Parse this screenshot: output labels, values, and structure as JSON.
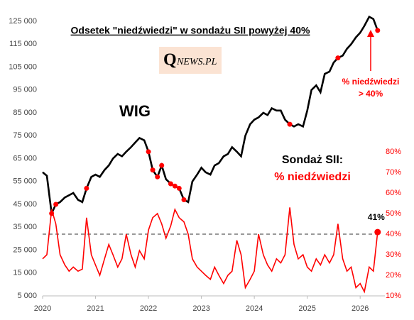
{
  "chart_data": {
    "type": "line",
    "title": "Odsetek \"niedźwiedzi\" w sondażu SII powyżej 40%",
    "logo_first": "Q",
    "logo_rest": "NEWS.PL",
    "x": [
      2020.0,
      2020.08,
      2020.17,
      2020.25,
      2020.33,
      2020.42,
      2020.5,
      2020.58,
      2020.67,
      2020.75,
      2020.83,
      2020.92,
      2021.0,
      2021.08,
      2021.17,
      2021.25,
      2021.33,
      2021.42,
      2021.5,
      2021.58,
      2021.67,
      2021.75,
      2021.83,
      2021.92,
      2022.0,
      2022.08,
      2022.17,
      2022.25,
      2022.33,
      2022.42,
      2022.5,
      2022.58,
      2022.67,
      2022.75,
      2022.83,
      2022.92,
      2023.0,
      2023.08,
      2023.17,
      2023.25,
      2023.33,
      2023.42,
      2023.5,
      2023.58,
      2023.67,
      2023.75,
      2023.83,
      2023.92,
      2024.0,
      2024.08,
      2024.17,
      2024.25,
      2024.33,
      2024.42,
      2024.5,
      2024.58,
      2024.67,
      2024.75,
      2024.83,
      2024.92,
      2025.0,
      2025.08,
      2025.17,
      2025.25,
      2025.33,
      2025.42,
      2025.5,
      2025.58,
      2025.67,
      2025.75,
      2025.83,
      2025.92,
      2026.0,
      2026.08,
      2026.17,
      2026.25,
      2026.33
    ],
    "series": [
      {
        "name": "WIG",
        "color": "#000000",
        "values": [
          59000,
          57500,
          41000,
          45000,
          46000,
          48000,
          49000,
          50000,
          47000,
          46000,
          52000,
          57000,
          58000,
          57000,
          60000,
          62000,
          65000,
          67000,
          66000,
          68000,
          70000,
          72000,
          74000,
          73000,
          68000,
          60000,
          57000,
          62000,
          56000,
          54000,
          53000,
          52000,
          47000,
          46000,
          55000,
          58000,
          61000,
          59000,
          58000,
          62000,
          63000,
          66000,
          67000,
          70000,
          68000,
          66000,
          75000,
          80000,
          82000,
          83000,
          85000,
          84000,
          87000,
          86000,
          86000,
          82000,
          80000,
          79000,
          80000,
          79000,
          86000,
          95000,
          97000,
          94000,
          102000,
          103000,
          107000,
          109000,
          110000,
          113000,
          115000,
          118000,
          120000,
          123000,
          127000,
          126000,
          121000
        ]
      },
      {
        "name": "% niedźwiedzi",
        "color": "#ff0000",
        "axis": "y2",
        "values": [
          28,
          30,
          52,
          45,
          30,
          25,
          22,
          24,
          22,
          23,
          48,
          30,
          25,
          20,
          28,
          35,
          30,
          24,
          28,
          40,
          30,
          24,
          32,
          28,
          42,
          48,
          50,
          45,
          38,
          44,
          52,
          48,
          46,
          40,
          28,
          24,
          22,
          20,
          18,
          24,
          20,
          16,
          20,
          22,
          37,
          30,
          14,
          18,
          22,
          40,
          30,
          25,
          22,
          28,
          26,
          30,
          53,
          35,
          28,
          30,
          24,
          22,
          28,
          25,
          30,
          26,
          30,
          45,
          28,
          22,
          24,
          14,
          16,
          12,
          24,
          22,
          41
        ]
      }
    ],
    "xlim": [
      2020,
      2026.4
    ],
    "xticks": [
      2020,
      2021,
      2022,
      2023,
      2024,
      2025,
      2026
    ],
    "ylim": [
      5000,
      125000
    ],
    "yticks": [
      {
        "value": 5000,
        "label": "5 000"
      },
      {
        "value": 15000,
        "label": "15 000"
      },
      {
        "value": 25000,
        "label": "25 000"
      },
      {
        "value": 35000,
        "label": "35 000"
      },
      {
        "value": 45000,
        "label": "45 000"
      },
      {
        "value": 55000,
        "label": "55 000"
      },
      {
        "value": 65000,
        "label": "65 000"
      },
      {
        "value": 75000,
        "label": "75 000"
      },
      {
        "value": 85000,
        "label": "85 000"
      },
      {
        "value": 95000,
        "label": "95 000"
      },
      {
        "value": 105000,
        "label": "105 000"
      },
      {
        "value": 115000,
        "label": "115 000"
      },
      {
        "value": 125000,
        "label": "125 000"
      }
    ],
    "y2lim": [
      10,
      143.4
    ],
    "y2ticks": [
      {
        "value": 10,
        "label": "10%"
      },
      {
        "value": 20,
        "label": "20%"
      },
      {
        "value": 30,
        "label": "30%"
      },
      {
        "value": 40,
        "label": "40%"
      },
      {
        "value": 50,
        "label": "50%"
      },
      {
        "value": 60,
        "label": "60%"
      },
      {
        "value": 70,
        "label": "70%"
      },
      {
        "value": 80,
        "label": "80%"
      }
    ],
    "threshold": 40,
    "last_label": "41%",
    "annotations": [
      "WIG",
      "Sondaż SII:",
      "% niedźwiedzi",
      "% niedźwiedzi",
      "> 40%"
    ]
  }
}
